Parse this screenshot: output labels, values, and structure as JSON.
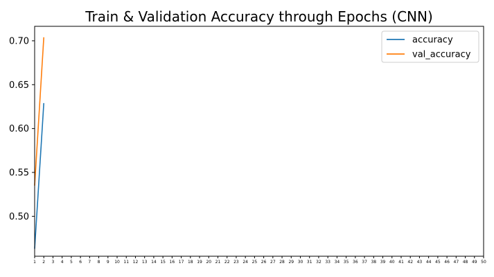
{
  "chart_data": {
    "type": "line",
    "title": "Train & Validation Accuracy through Epochs (CNN)",
    "xlabel": "",
    "ylabel": "",
    "x": [
      1,
      2
    ],
    "xticks": [
      1,
      2,
      3,
      4,
      5,
      6,
      7,
      8,
      9,
      10,
      11,
      12,
      13,
      14,
      15,
      16,
      17,
      18,
      19,
      20,
      21,
      22,
      23,
      24,
      25,
      26,
      27,
      28,
      29,
      30,
      31,
      32,
      33,
      34,
      35,
      36,
      37,
      38,
      39,
      40,
      41,
      42,
      43,
      44,
      45,
      46,
      47,
      48,
      49,
      50
    ],
    "yticks": [
      0.5,
      0.55,
      0.6,
      0.65,
      0.7
    ],
    "ytick_labels": [
      "0.50",
      "0.55",
      "0.60",
      "0.65",
      "0.70"
    ],
    "xlim": [
      1,
      50
    ],
    "ylim": [
      0.4545,
      0.7165
    ],
    "grid": false,
    "legend_position": "top-right",
    "series": [
      {
        "name": "accuracy",
        "color": "#1f77b4",
        "values": [
          0.463,
          0.629
        ]
      },
      {
        "name": "val_accuracy",
        "color": "#ff7f0e",
        "values": [
          0.535,
          0.704
        ]
      }
    ]
  }
}
